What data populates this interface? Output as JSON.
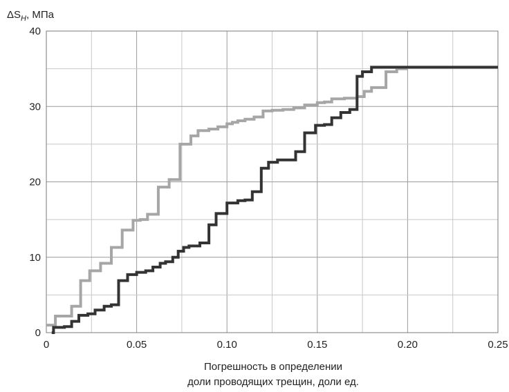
{
  "chart_data": {
    "type": "line",
    "title": "",
    "ylabel_prefix": "ΔS",
    "ylabel_sub": "H",
    "ylabel_suffix": ", МПа",
    "xlabel_line1": "Погрешность в определении",
    "xlabel_line2": "доли проводящих трещин, доли ед.",
    "xlim": [
      0,
      0.25
    ],
    "ylim": [
      0,
      40
    ],
    "x_ticks": [
      "0",
      "0.05",
      "0.10",
      "0.15",
      "0.20",
      "0.25"
    ],
    "y_ticks": [
      "0",
      "10",
      "20",
      "30",
      "40"
    ],
    "x_tick_values": [
      0,
      0.05,
      0.1,
      0.15,
      0.2,
      0.25
    ],
    "y_tick_values": [
      0,
      10,
      20,
      30,
      40
    ],
    "grid": true,
    "step": true,
    "series": [
      {
        "color": "#a6a6a6",
        "x": [
          0.0,
          0.005,
          0.014,
          0.019,
          0.024,
          0.03,
          0.036,
          0.042,
          0.048,
          0.052,
          0.056,
          0.062,
          0.068,
          0.074,
          0.08,
          0.084,
          0.09,
          0.095,
          0.1,
          0.103,
          0.106,
          0.11,
          0.115,
          0.12,
          0.125,
          0.131,
          0.137,
          0.143,
          0.15,
          0.154,
          0.158,
          0.165,
          0.168,
          0.172,
          0.176,
          0.18,
          0.188,
          0.194,
          0.2
        ],
        "y": [
          1.0,
          2.2,
          3.5,
          6.9,
          8.2,
          9.2,
          11.3,
          13.6,
          14.9,
          15.0,
          15.7,
          19.3,
          20.3,
          25.0,
          26.1,
          26.8,
          27.0,
          27.3,
          27.7,
          27.9,
          28.1,
          28.3,
          28.6,
          29.4,
          29.5,
          29.6,
          29.8,
          30.2,
          30.5,
          30.6,
          31.0,
          31.1,
          31.1,
          31.3,
          32.0,
          32.5,
          34.6,
          35.0,
          35.0
        ]
      },
      {
        "color": "#333333",
        "x": [
          0.003,
          0.004,
          0.01,
          0.014,
          0.018,
          0.023,
          0.027,
          0.032,
          0.036,
          0.04,
          0.045,
          0.05,
          0.055,
          0.059,
          0.063,
          0.066,
          0.07,
          0.073,
          0.076,
          0.079,
          0.085,
          0.09,
          0.094,
          0.1,
          0.106,
          0.11,
          0.114,
          0.119,
          0.123,
          0.128,
          0.132,
          0.138,
          0.143,
          0.149,
          0.154,
          0.158,
          0.163,
          0.168,
          0.172,
          0.175,
          0.18,
          0.25
        ],
        "y": [
          0.0,
          0.7,
          0.8,
          1.5,
          2.3,
          2.5,
          3.0,
          3.5,
          3.7,
          6.9,
          7.7,
          8.0,
          8.2,
          8.7,
          9.2,
          9.4,
          10.0,
          10.8,
          11.3,
          11.5,
          11.9,
          14.3,
          15.8,
          17.2,
          17.5,
          17.6,
          18.7,
          21.8,
          22.6,
          22.9,
          22.9,
          24.0,
          26.5,
          27.5,
          27.6,
          28.5,
          29.2,
          29.6,
          34.0,
          34.6,
          35.2,
          35.2
        ]
      }
    ]
  }
}
